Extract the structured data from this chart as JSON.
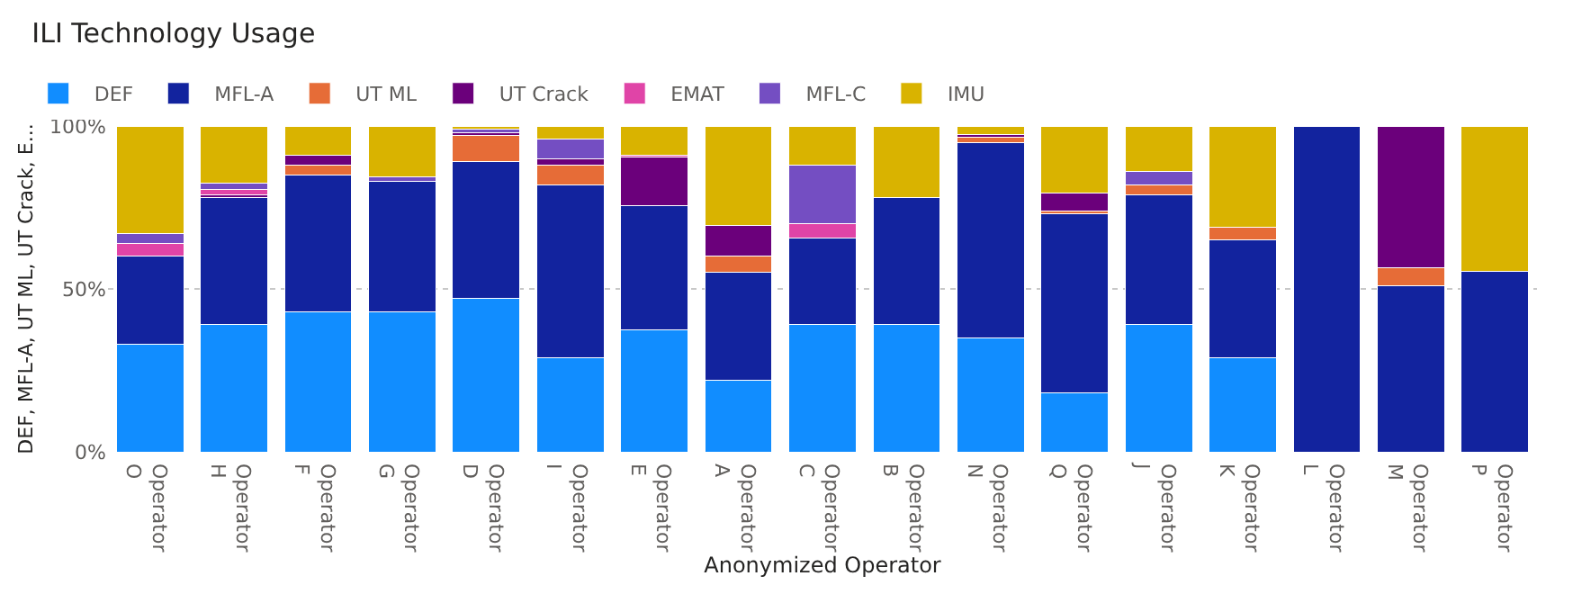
{
  "chart_data": {
    "type": "bar",
    "title": "ILI Technology Usage",
    "xlabel": "Anonymized Operator",
    "ylabel": "DEF, MFL-A, UT ML, UT Crack, E...",
    "categories": [
      "Operator O",
      "Operator H",
      "Operator F",
      "Operator G",
      "Operator D",
      "Operator I",
      "Operator E",
      "Operator A",
      "Operator C",
      "Operator B",
      "Operator N",
      "Operator Q",
      "Operator J",
      "Operator K",
      "Operator L",
      "Operator M",
      "Operator P"
    ],
    "stacked": true,
    "series": [
      {
        "name": "DEF",
        "color": "#118dff",
        "values": [
          33,
          39,
          43,
          43,
          47,
          29,
          37.5,
          22,
          39,
          39,
          35,
          18,
          39,
          29,
          null,
          null,
          null
        ]
      },
      {
        "name": "MFL-A",
        "color": "#12239e",
        "values": [
          27,
          39,
          42,
          40,
          42,
          53,
          38,
          33,
          26.5,
          39,
          60,
          55,
          40,
          36,
          100,
          51,
          55.5
        ]
      },
      {
        "name": "UT ML",
        "color": "#e66c37",
        "values": [
          null,
          null,
          3,
          null,
          8,
          6,
          null,
          5,
          null,
          null,
          1.5,
          1,
          3,
          4,
          null,
          5.5,
          null
        ]
      },
      {
        "name": "UT Crack",
        "color": "#6b007b",
        "values": [
          null,
          1,
          3,
          null,
          1,
          2,
          15,
          9.5,
          null,
          null,
          1,
          5.5,
          null,
          null,
          null,
          43.5,
          null
        ]
      },
      {
        "name": "EMAT",
        "color": "#e044a7",
        "values": [
          4,
          1.5,
          null,
          null,
          null,
          null,
          0.5,
          null,
          4.5,
          null,
          null,
          null,
          null,
          null,
          null,
          null,
          null
        ]
      },
      {
        "name": "MFL-C",
        "color": "#744ec2",
        "values": [
          3,
          2,
          null,
          1.5,
          1,
          6,
          null,
          null,
          18,
          null,
          null,
          null,
          4,
          null,
          null,
          null,
          null
        ]
      },
      {
        "name": "IMU",
        "color": "#d9b300",
        "values": [
          33,
          17.5,
          9,
          15.5,
          1,
          4,
          9,
          30.5,
          12,
          22,
          2.5,
          20.5,
          14,
          31,
          null,
          null,
          44.5
        ]
      }
    ],
    "ylim": [
      0,
      100
    ],
    "yticks": [
      {
        "value": 0,
        "label": "0%"
      },
      {
        "value": 50,
        "label": "50%"
      },
      {
        "value": 100,
        "label": "100%"
      }
    ],
    "grid": "y",
    "legend": "top left"
  }
}
